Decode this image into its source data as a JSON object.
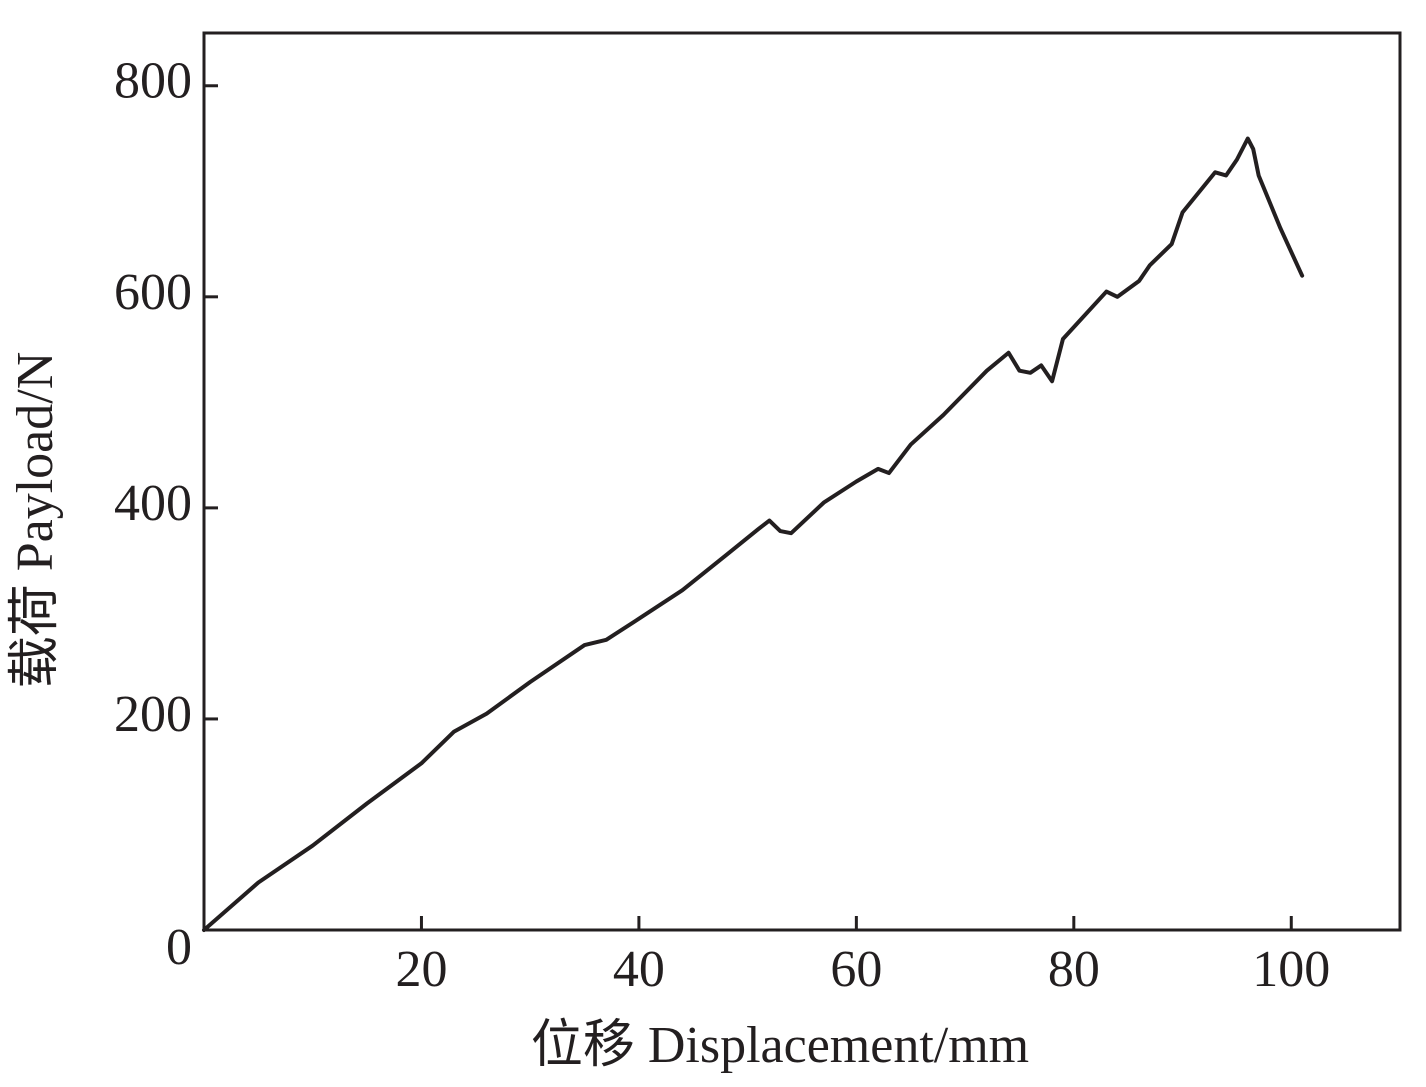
{
  "chart_data": {
    "type": "line",
    "xlabel": "位移 Displacement/mm",
    "ylabel": "载荷 Payload/N",
    "x": [
      0,
      2,
      5,
      10,
      15,
      20,
      23,
      26,
      30,
      35,
      37,
      40,
      44,
      48,
      51,
      52,
      53,
      54,
      57,
      60,
      62,
      63,
      65,
      68,
      72,
      74,
      75,
      76,
      77,
      78,
      79,
      83,
      84,
      86,
      87,
      89,
      90,
      93,
      94,
      95,
      96,
      96.5,
      97,
      99,
      101
    ],
    "values": [
      0,
      18,
      45,
      80,
      120,
      158,
      188,
      205,
      235,
      270,
      275,
      295,
      322,
      355,
      380,
      388,
      378,
      376,
      405,
      425,
      437,
      433,
      460,
      488,
      530,
      547,
      530,
      528,
      535,
      520,
      560,
      605,
      600,
      615,
      630,
      650,
      680,
      718,
      715,
      730,
      750,
      740,
      715,
      665,
      620
    ],
    "color": "#231f20",
    "xlim": [
      0,
      110
    ],
    "xticks": [
      20,
      40,
      60,
      80,
      100
    ],
    "ylim": [
      0,
      850
    ],
    "yticks": [
      0,
      200,
      400,
      600,
      800
    ]
  }
}
